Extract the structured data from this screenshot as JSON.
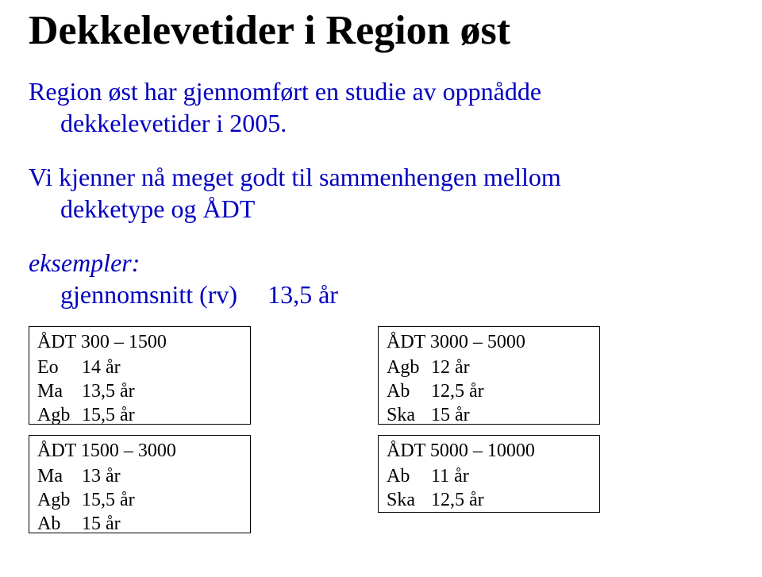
{
  "title": "Dekkelevetider i Region øst",
  "intro_line1": "Region øst har gjennomført en studie av oppnådde",
  "intro_line2": "dekkelevetider i 2005.",
  "para2_line1": "Vi kjenner nå meget godt til sammenhengen mellom",
  "para2_line2": "dekketype og ÅDT",
  "examples_label": "eksempler:",
  "avg_label": "gjennomsnitt (rv)",
  "avg_value": "13,5 år",
  "boxes": {
    "b1": {
      "head": "ÅDT 300 – 1500",
      "rows": [
        {
          "lab": "Eo",
          "val": "14 år"
        },
        {
          "lab": "Ma",
          "val": "13,5 år"
        },
        {
          "lab": "Agb",
          "val": "15,5 år"
        }
      ]
    },
    "b2": {
      "head": "ÅDT 1500 – 3000",
      "rows": [
        {
          "lab": "Ma",
          "val": "13 år"
        },
        {
          "lab": "Agb",
          "val": "15,5 år"
        },
        {
          "lab": "Ab",
          "val": "15 år"
        }
      ]
    },
    "b3": {
      "head": "ÅDT 3000 – 5000",
      "rows": [
        {
          "lab": "Agb",
          "val": "12 år"
        },
        {
          "lab": "Ab",
          "val": "12,5 år"
        },
        {
          "lab": "Ska",
          "val": "15 år"
        }
      ]
    },
    "b4": {
      "head": "ÅDT 5000 – 10000",
      "rows": [
        {
          "lab": "Ab",
          "val": "11 år"
        },
        {
          "lab": "Ska",
          "val": "12,5 år"
        }
      ]
    }
  }
}
